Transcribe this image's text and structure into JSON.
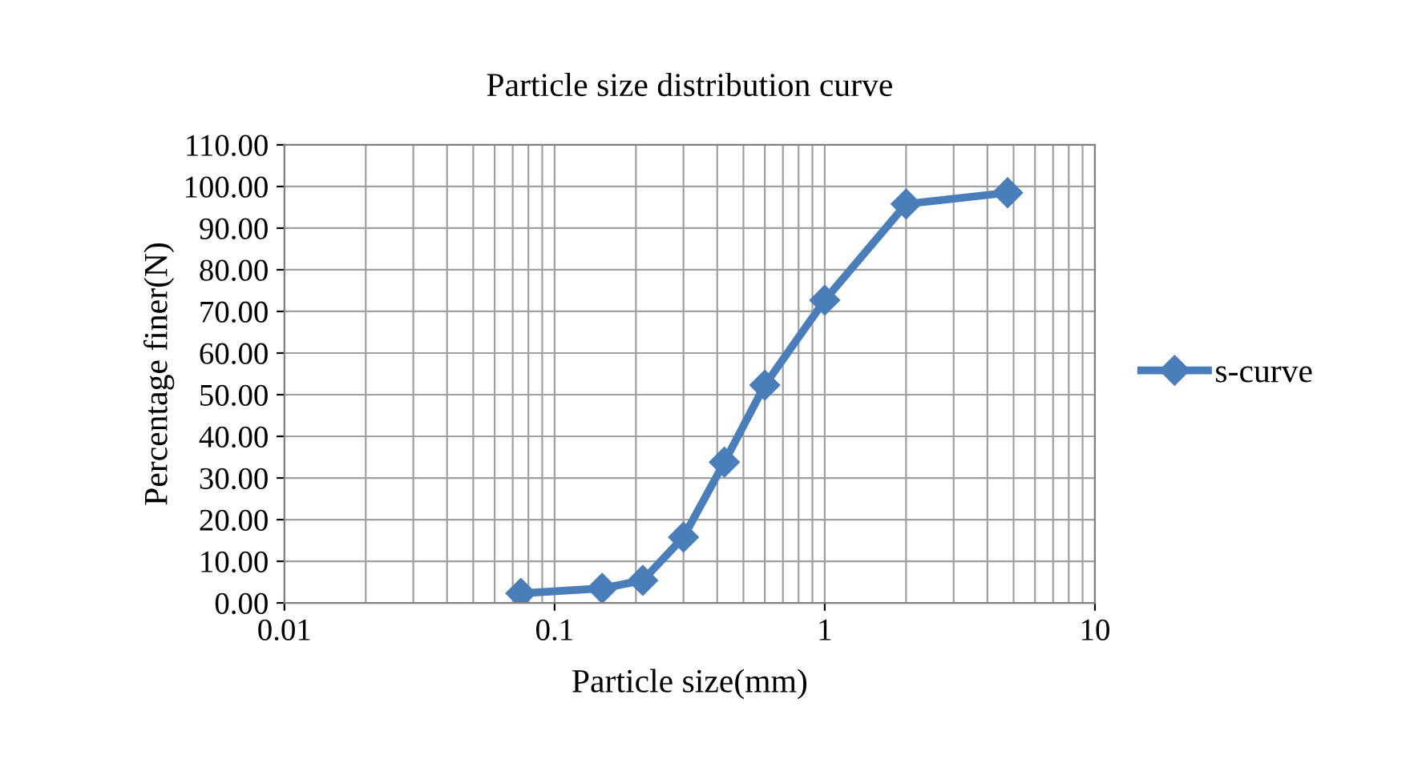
{
  "chart_data": {
    "type": "line",
    "title": "Particle size distribution curve",
    "xlabel": "Particle size(mm)",
    "ylabel": "Percentage finer(N)",
    "log": "x",
    "xlim": [
      0.01,
      10
    ],
    "xticks": [
      0.01,
      0.1,
      1,
      10
    ],
    "ylim": [
      0,
      110
    ],
    "yticks": [
      {
        "value": 0,
        "label": "0.00"
      },
      {
        "value": 10,
        "label": "10.00"
      },
      {
        "value": 20,
        "label": "20.00"
      },
      {
        "value": 30,
        "label": "30.00"
      },
      {
        "value": 40,
        "label": "40.00"
      },
      {
        "value": 50,
        "label": "50.00"
      },
      {
        "value": 60,
        "label": "60.00"
      },
      {
        "value": 70,
        "label": "70.00"
      },
      {
        "value": 80,
        "label": "80.00"
      },
      {
        "value": 90,
        "label": "90.00"
      },
      {
        "value": 100,
        "label": "100.00"
      },
      {
        "value": 110,
        "label": "110.00"
      }
    ],
    "grid": true,
    "legend": "right",
    "marker": "diamond",
    "line_style": "solid",
    "series": [
      {
        "name": "s-curve",
        "color": "#4a7ebb",
        "x": [
          0.075,
          0.15,
          0.212,
          0.3,
          0.425,
          0.6,
          1.0,
          2.0,
          4.75
        ],
        "values": [
          2.3,
          3.5,
          5.4,
          15.8,
          33.8,
          52.3,
          72.7,
          95.8,
          98.5
        ]
      }
    ]
  }
}
